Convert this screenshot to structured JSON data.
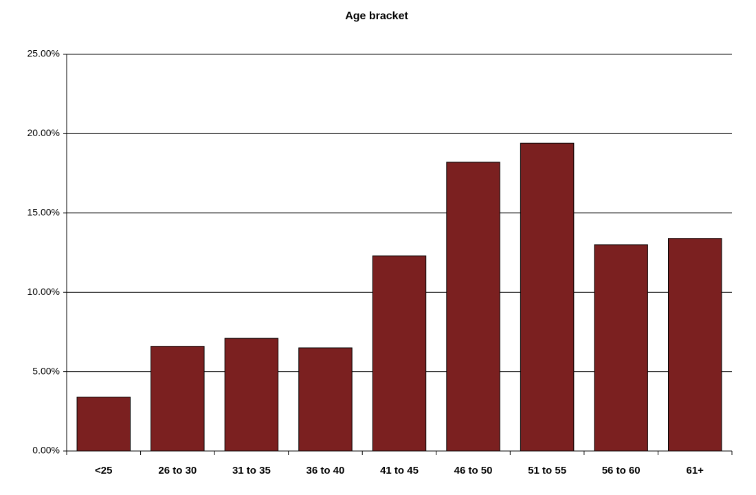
{
  "chart_data": {
    "type": "bar",
    "title": "Age bracket",
    "categories": [
      "<25",
      "26 to 30",
      "31 to 35",
      "36 to 40",
      "41 to 45",
      "46 to 50",
      "51 to 55",
      "56 to 60",
      "61+"
    ],
    "values": [
      3.4,
      6.6,
      7.1,
      6.5,
      12.3,
      18.2,
      19.4,
      13.0,
      13.4
    ],
    "color": "#7b2020",
    "ylim": [
      0,
      25
    ],
    "yticks": [
      {
        "value": 0,
        "label": "0.00%"
      },
      {
        "value": 5,
        "label": "5.00%"
      },
      {
        "value": 10,
        "label": "10.00%"
      },
      {
        "value": 15,
        "label": "15.00%"
      },
      {
        "value": 20,
        "label": "20.00%"
      },
      {
        "value": 25,
        "label": "25.00%"
      }
    ],
    "grid": true
  }
}
